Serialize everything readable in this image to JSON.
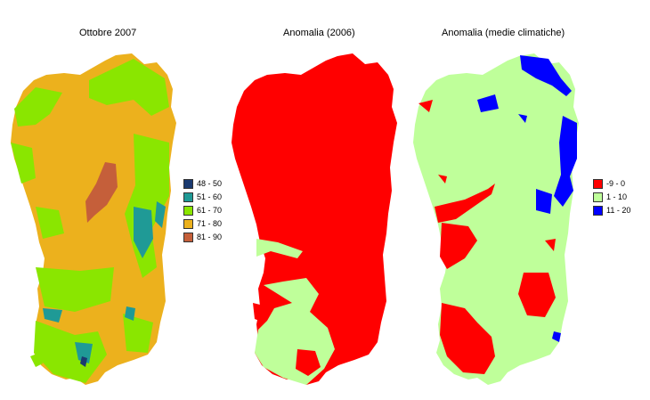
{
  "panels": [
    {
      "title": "Ottobre 2007",
      "legend": [
        {
          "label": "48 - 50",
          "color": "#1a3a70"
        },
        {
          "label": "51 - 60",
          "color": "#1f9a96"
        },
        {
          "label": "61 - 70",
          "color": "#8ae600"
        },
        {
          "label": "71 - 80",
          "color": "#ecb11d"
        },
        {
          "label": "81 - 90",
          "color": "#c55f3a"
        }
      ]
    },
    {
      "title": "Anomalia (2006)",
      "legend": []
    },
    {
      "title": "Anomalia (medie climatiche)",
      "legend": [
        {
          "label": "-9 - 0",
          "color": "#ff0000"
        },
        {
          "label": "1 - 10",
          "color": "#bfff9a"
        },
        {
          "label": "11 - 20",
          "color": "#0000ff"
        }
      ]
    }
  ],
  "colors": {
    "anomaly_red": "#ff0000",
    "anomaly_green": "#bfff9a",
    "anomaly_blue": "#0000ff",
    "humidity_orange": "#ecb11d",
    "humidity_green": "#8ae600",
    "humidity_teal": "#1f9a96",
    "humidity_brown": "#c55f3a"
  }
}
